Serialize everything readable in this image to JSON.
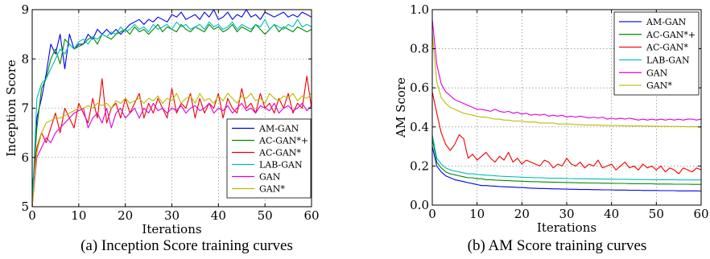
{
  "chart_data": [
    {
      "type": "line",
      "caption": "(a) Inception Score training curves",
      "xlabel": "Iterations",
      "ylabel": "Inception Score",
      "xlim": [
        0,
        60
      ],
      "ylim": [
        5,
        9
      ],
      "xticks": [
        "0",
        "10",
        "20",
        "30",
        "40",
        "50",
        "60"
      ],
      "yticks": [
        "5",
        "6",
        "7",
        "8",
        "9"
      ],
      "grid": true,
      "legend_position": "lower-right",
      "x": [
        0,
        1,
        2,
        3,
        4,
        5,
        6,
        7,
        8,
        9,
        10,
        11,
        12,
        13,
        14,
        15,
        16,
        17,
        18,
        19,
        20,
        21,
        22,
        23,
        24,
        25,
        26,
        27,
        28,
        29,
        30,
        31,
        32,
        33,
        34,
        35,
        36,
        37,
        38,
        39,
        40,
        41,
        42,
        43,
        44,
        45,
        46,
        47,
        48,
        49,
        50,
        51,
        52,
        53,
        54,
        55,
        56,
        57,
        58,
        59,
        60
      ],
      "series": [
        {
          "name": "AM-GAN",
          "color": "#0000ee",
          "values": [
            5.0,
            6.8,
            7.2,
            7.7,
            8.3,
            8.1,
            8.5,
            7.8,
            8.5,
            8.2,
            8.3,
            8.3,
            8.5,
            8.4,
            8.6,
            8.5,
            8.6,
            8.5,
            8.6,
            8.5,
            8.6,
            8.7,
            8.75,
            8.8,
            8.7,
            8.8,
            8.75,
            8.85,
            8.8,
            8.75,
            8.9,
            8.85,
            8.95,
            8.8,
            8.85,
            8.9,
            8.8,
            8.95,
            8.85,
            9.0,
            8.8,
            8.85,
            8.95,
            8.8,
            8.9,
            8.85,
            9.0,
            8.85,
            8.9,
            8.8,
            8.95,
            8.9,
            8.85,
            8.9,
            8.95,
            8.85,
            8.9,
            8.85,
            8.95,
            8.9,
            8.85
          ]
        },
        {
          "name": "AC-GAN*+",
          "color": "#008800",
          "values": [
            5.2,
            6.6,
            7.4,
            7.6,
            8.0,
            8.2,
            7.9,
            8.4,
            8.3,
            8.2,
            8.25,
            8.3,
            8.4,
            8.45,
            8.3,
            8.5,
            8.45,
            8.4,
            8.5,
            8.55,
            8.6,
            8.5,
            8.65,
            8.55,
            8.6,
            8.5,
            8.6,
            8.7,
            8.55,
            8.65,
            8.6,
            8.55,
            8.7,
            8.6,
            8.55,
            8.65,
            8.6,
            8.55,
            8.7,
            8.6,
            8.65,
            8.55,
            8.6,
            8.7,
            8.55,
            8.65,
            8.6,
            8.55,
            8.7,
            8.6,
            8.5,
            8.6,
            8.7,
            8.55,
            8.65,
            8.6,
            8.55,
            8.65,
            8.6,
            8.55,
            8.6
          ]
        },
        {
          "name": "AC-GAN*",
          "color": "#ee0000",
          "values": [
            5.4,
            6.2,
            6.5,
            6.3,
            6.6,
            6.9,
            6.5,
            7.0,
            6.8,
            6.6,
            7.1,
            6.9,
            6.7,
            7.2,
            6.8,
            7.6,
            6.7,
            7.0,
            7.1,
            6.8,
            7.2,
            6.9,
            7.1,
            7.3,
            6.8,
            7.1,
            6.9,
            7.2,
            7.0,
            6.8,
            7.4,
            6.9,
            7.1,
            7.0,
            7.3,
            6.8,
            7.2,
            6.9,
            7.1,
            7.0,
            7.3,
            6.8,
            7.2,
            7.0,
            6.9,
            7.4,
            7.0,
            7.1,
            6.9,
            7.3,
            7.0,
            7.1,
            6.9,
            7.2,
            7.0,
            7.3,
            6.9,
            7.1,
            7.0,
            7.65,
            7.0
          ]
        },
        {
          "name": "LAB-GAN",
          "color": "#00bbbb",
          "values": [
            5.0,
            7.2,
            7.5,
            7.6,
            7.8,
            8.0,
            8.2,
            8.1,
            8.3,
            8.2,
            8.35,
            8.4,
            8.3,
            8.45,
            8.4,
            8.5,
            8.45,
            8.55,
            8.5,
            8.65,
            8.55,
            8.6,
            8.7,
            8.6,
            8.65,
            8.55,
            8.7,
            8.6,
            8.65,
            8.7,
            8.6,
            8.75,
            8.65,
            8.7,
            8.6,
            8.65,
            8.7,
            8.6,
            8.75,
            8.65,
            8.7,
            8.6,
            8.65,
            8.75,
            8.6,
            8.7,
            8.65,
            8.6,
            8.7,
            8.65,
            8.8,
            8.6,
            8.7,
            8.65,
            8.6,
            8.7,
            8.65,
            8.8,
            8.65,
            8.7,
            8.65
          ]
        },
        {
          "name": "GAN",
          "color": "#dd00dd",
          "values": [
            5.0,
            6.0,
            6.2,
            6.4,
            6.3,
            6.5,
            6.6,
            6.7,
            6.8,
            6.9,
            6.95,
            7.0,
            6.6,
            6.8,
            6.9,
            6.7,
            7.0,
            6.6,
            6.9,
            7.0,
            6.8,
            6.9,
            7.0,
            6.8,
            7.0,
            6.9,
            7.1,
            6.95,
            7.0,
            6.9,
            7.0,
            6.95,
            7.05,
            6.9,
            7.0,
            7.05,
            6.95,
            7.0,
            7.1,
            6.9,
            7.0,
            6.95,
            7.05,
            6.9,
            7.0,
            7.1,
            6.95,
            7.0,
            6.9,
            7.05,
            7.0,
            6.95,
            7.1,
            6.9,
            7.0,
            7.05,
            6.95,
            7.0,
            7.1,
            6.95,
            7.05
          ]
        },
        {
          "name": "GAN*",
          "color": "#bbbb00",
          "values": [
            5.0,
            6.1,
            6.5,
            6.7,
            6.75,
            6.8,
            6.8,
            6.85,
            6.9,
            6.95,
            7.0,
            7.0,
            7.05,
            7.0,
            7.1,
            7.05,
            7.1,
            7.0,
            7.15,
            7.1,
            7.2,
            7.1,
            7.15,
            7.2,
            7.1,
            7.2,
            7.15,
            7.25,
            7.1,
            7.2,
            7.15,
            7.3,
            7.1,
            7.2,
            7.25,
            7.1,
            7.3,
            7.15,
            7.2,
            7.1,
            7.25,
            7.15,
            7.3,
            7.2,
            7.1,
            7.25,
            7.2,
            7.3,
            7.15,
            7.2,
            7.1,
            7.3,
            7.2,
            7.15,
            7.25,
            7.2,
            7.3,
            7.15,
            7.25,
            7.2,
            7.3
          ]
        }
      ]
    },
    {
      "type": "line",
      "caption": "(b) AM Score training curves",
      "xlabel": "Iterations",
      "ylabel": "AM Score",
      "xlim": [
        0,
        60
      ],
      "ylim": [
        0,
        1
      ],
      "xticks": [
        "0",
        "10",
        "20",
        "30",
        "40",
        "50",
        "60"
      ],
      "yticks": [
        "0.0",
        "0.2",
        "0.4",
        "0.6",
        "0.8",
        "1.0"
      ],
      "grid": true,
      "legend_position": "top-right",
      "x": [
        0,
        1,
        2,
        3,
        4,
        5,
        6,
        7,
        8,
        9,
        10,
        11,
        12,
        13,
        14,
        15,
        16,
        17,
        18,
        19,
        20,
        21,
        22,
        23,
        24,
        25,
        26,
        27,
        28,
        29,
        30,
        31,
        32,
        33,
        34,
        35,
        36,
        37,
        38,
        39,
        40,
        41,
        42,
        43,
        44,
        45,
        46,
        47,
        48,
        49,
        50,
        51,
        52,
        53,
        54,
        55,
        56,
        57,
        58,
        59,
        60
      ],
      "series": [
        {
          "name": "AM-GAN",
          "color": "#0000ee",
          "values": [
            0.3,
            0.2,
            0.17,
            0.15,
            0.14,
            0.13,
            0.125,
            0.12,
            0.115,
            0.11,
            0.105,
            0.1,
            0.1,
            0.098,
            0.097,
            0.095,
            0.094,
            0.093,
            0.092,
            0.09,
            0.09,
            0.088,
            0.087,
            0.086,
            0.085,
            0.085,
            0.084,
            0.083,
            0.083,
            0.082,
            0.082,
            0.081,
            0.081,
            0.08,
            0.08,
            0.08,
            0.079,
            0.079,
            0.078,
            0.078,
            0.078,
            0.077,
            0.077,
            0.077,
            0.076,
            0.076,
            0.076,
            0.075,
            0.075,
            0.075,
            0.075,
            0.074,
            0.074,
            0.074,
            0.074,
            0.073,
            0.073,
            0.073,
            0.073,
            0.073,
            0.072
          ]
        },
        {
          "name": "AC-GAN*+",
          "color": "#008800",
          "values": [
            0.34,
            0.22,
            0.19,
            0.17,
            0.16,
            0.155,
            0.15,
            0.145,
            0.14,
            0.14,
            0.135,
            0.135,
            0.13,
            0.13,
            0.128,
            0.127,
            0.126,
            0.125,
            0.124,
            0.123,
            0.122,
            0.121,
            0.12,
            0.12,
            0.119,
            0.118,
            0.118,
            0.117,
            0.117,
            0.116,
            0.116,
            0.115,
            0.115,
            0.114,
            0.114,
            0.113,
            0.113,
            0.113,
            0.112,
            0.112,
            0.112,
            0.111,
            0.111,
            0.111,
            0.11,
            0.11,
            0.11,
            0.109,
            0.109,
            0.109,
            0.108,
            0.108,
            0.108,
            0.108,
            0.107,
            0.107,
            0.107,
            0.107,
            0.106,
            0.106,
            0.106
          ]
        },
        {
          "name": "AC-GAN*",
          "color": "#ee0000",
          "values": [
            0.58,
            0.47,
            0.37,
            0.31,
            0.28,
            0.31,
            0.36,
            0.34,
            0.24,
            0.26,
            0.23,
            0.25,
            0.27,
            0.24,
            0.22,
            0.25,
            0.23,
            0.27,
            0.22,
            0.24,
            0.21,
            0.23,
            0.22,
            0.21,
            0.2,
            0.23,
            0.22,
            0.19,
            0.21,
            0.2,
            0.24,
            0.21,
            0.2,
            0.22,
            0.19,
            0.21,
            0.2,
            0.23,
            0.19,
            0.2,
            0.21,
            0.18,
            0.2,
            0.22,
            0.19,
            0.2,
            0.18,
            0.21,
            0.19,
            0.2,
            0.18,
            0.2,
            0.17,
            0.19,
            0.18,
            0.16,
            0.19,
            0.18,
            0.17,
            0.19,
            0.18
          ]
        },
        {
          "name": "LAB-GAN",
          "color": "#00bbbb",
          "values": [
            0.36,
            0.24,
            0.21,
            0.19,
            0.18,
            0.175,
            0.17,
            0.165,
            0.16,
            0.16,
            0.157,
            0.155,
            0.153,
            0.152,
            0.15,
            0.148,
            0.147,
            0.146,
            0.145,
            0.144,
            0.143,
            0.142,
            0.141,
            0.14,
            0.14,
            0.139,
            0.138,
            0.138,
            0.137,
            0.137,
            0.136,
            0.136,
            0.135,
            0.135,
            0.135,
            0.134,
            0.134,
            0.134,
            0.133,
            0.133,
            0.133,
            0.132,
            0.132,
            0.132,
            0.132,
            0.131,
            0.131,
            0.131,
            0.131,
            0.13,
            0.13,
            0.13,
            0.13,
            0.13,
            0.13,
            0.129,
            0.129,
            0.129,
            0.129,
            0.129,
            0.129
          ]
        },
        {
          "name": "GAN",
          "color": "#dd00dd",
          "values": [
            0.95,
            0.72,
            0.62,
            0.58,
            0.56,
            0.54,
            0.53,
            0.52,
            0.51,
            0.5,
            0.49,
            0.49,
            0.485,
            0.48,
            0.49,
            0.48,
            0.475,
            0.48,
            0.47,
            0.475,
            0.465,
            0.47,
            0.46,
            0.465,
            0.46,
            0.465,
            0.455,
            0.46,
            0.455,
            0.46,
            0.45,
            0.455,
            0.45,
            0.455,
            0.45,
            0.445,
            0.45,
            0.445,
            0.45,
            0.44,
            0.445,
            0.44,
            0.445,
            0.44,
            0.445,
            0.44,
            0.435,
            0.44,
            0.435,
            0.44,
            0.435,
            0.44,
            0.435,
            0.44,
            0.435,
            0.44,
            0.435,
            0.44,
            0.44,
            0.435,
            0.44
          ]
        },
        {
          "name": "GAN*",
          "color": "#bbbb00",
          "values": [
            0.88,
            0.63,
            0.55,
            0.52,
            0.5,
            0.49,
            0.48,
            0.47,
            0.465,
            0.46,
            0.455,
            0.45,
            0.45,
            0.445,
            0.44,
            0.44,
            0.435,
            0.435,
            0.43,
            0.43,
            0.43,
            0.425,
            0.425,
            0.425,
            0.42,
            0.42,
            0.42,
            0.42,
            0.415,
            0.415,
            0.415,
            0.415,
            0.412,
            0.412,
            0.41,
            0.41,
            0.41,
            0.41,
            0.408,
            0.408,
            0.407,
            0.407,
            0.406,
            0.406,
            0.405,
            0.405,
            0.405,
            0.404,
            0.404,
            0.404,
            0.403,
            0.403,
            0.403,
            0.402,
            0.402,
            0.402,
            0.402,
            0.401,
            0.401,
            0.401,
            0.4
          ]
        }
      ]
    }
  ]
}
